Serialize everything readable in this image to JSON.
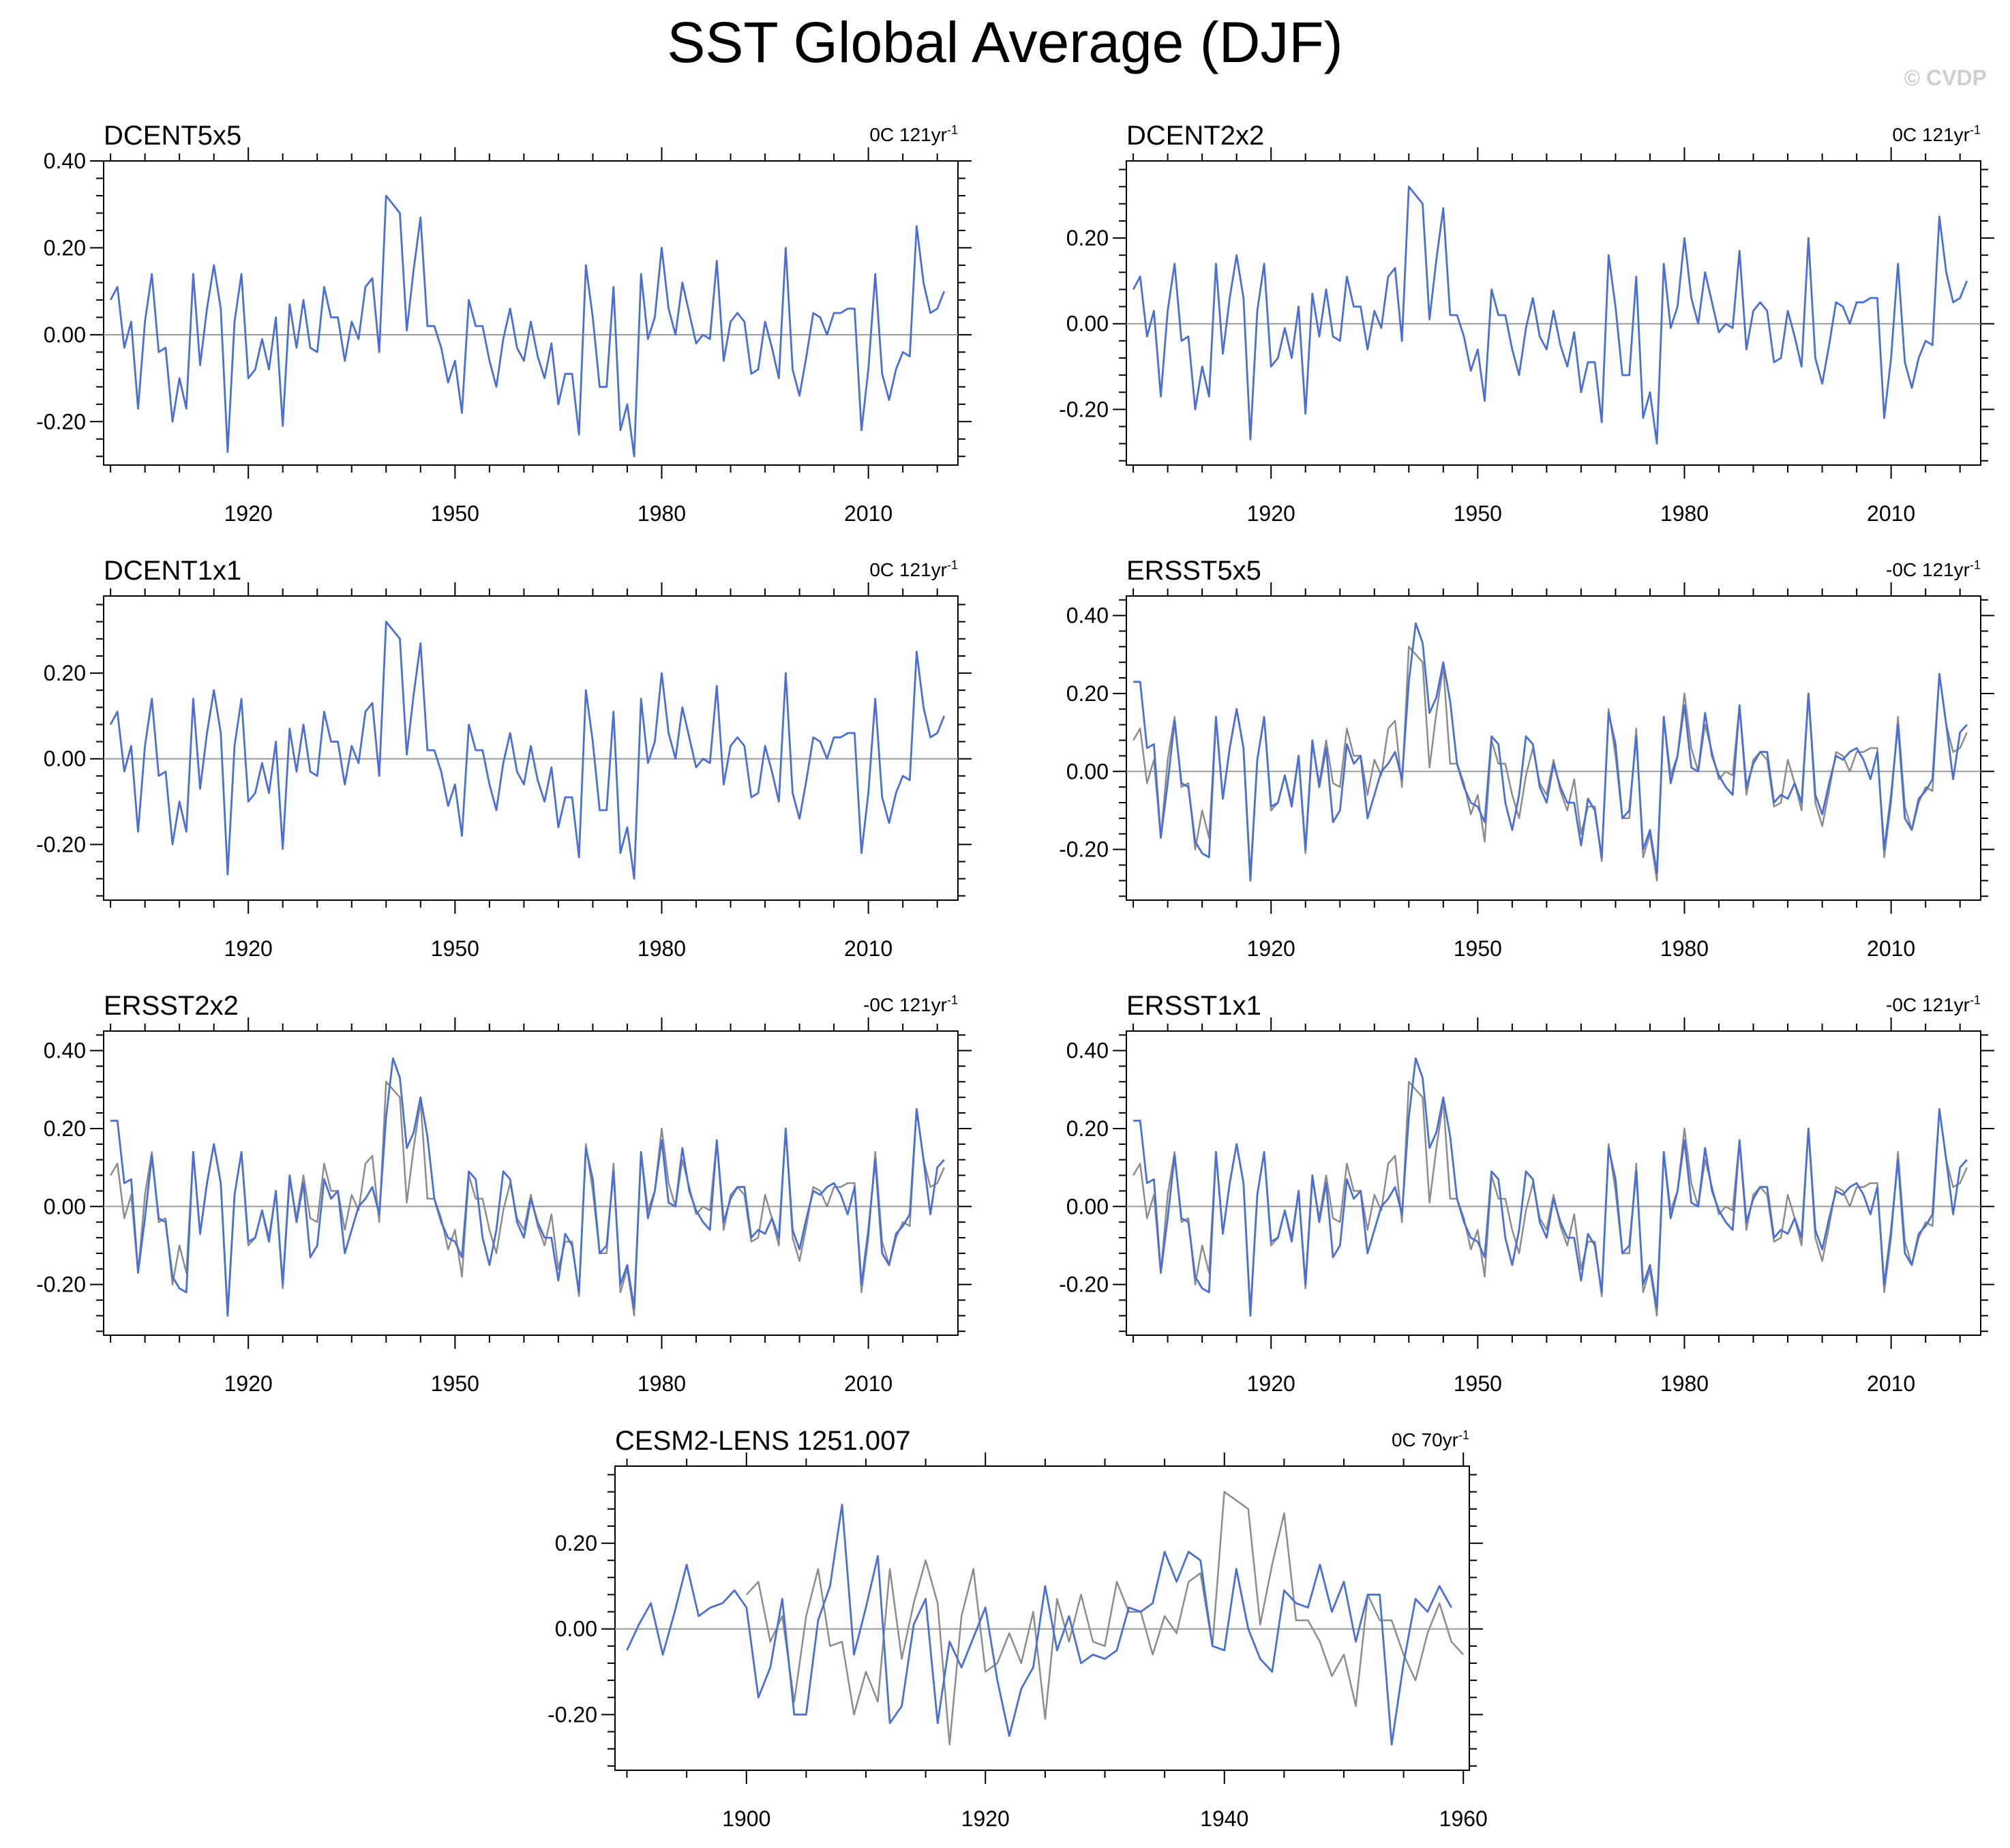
{
  "title": "SST Global Average (DJF)",
  "credit": "© CVDP",
  "colors": {
    "series": "#4a6fd6",
    "reference": "#8c8c8c",
    "zero_line": "#9a9a9a",
    "axis": "#000000"
  },
  "chart_data": [
    {
      "type": "line",
      "name": "DCENT5x5",
      "trend_value": "0C",
      "trend_span": "121yr",
      "trend_exp": "-1",
      "x_start": 1900,
      "xlim": [
        1899,
        2023
      ],
      "xticks": [
        1920,
        1950,
        1980,
        2010
      ],
      "ylim": [
        -0.3,
        0.4
      ],
      "yticks": [
        -0.2,
        0.0,
        0.2,
        0.4
      ],
      "ytick_labels": [
        "-0.20",
        "0.00",
        "0.20",
        "0.40"
      ],
      "reference": null,
      "series": [
        0.08,
        0.11,
        -0.03,
        0.03,
        -0.17,
        0.03,
        0.14,
        -0.04,
        -0.03,
        -0.2,
        -0.1,
        -0.17,
        0.14,
        -0.07,
        0.06,
        0.16,
        0.06,
        -0.27,
        0.03,
        0.14,
        -0.1,
        -0.08,
        -0.01,
        -0.08,
        0.04,
        -0.21,
        0.07,
        -0.03,
        0.08,
        -0.03,
        -0.04,
        0.11,
        0.04,
        0.04,
        -0.06,
        0.03,
        -0.01,
        0.11,
        0.13,
        -0.04,
        0.32,
        0.3,
        0.28,
        0.01,
        0.15,
        0.27,
        0.02,
        0.02,
        -0.03,
        -0.11,
        -0.06,
        -0.18,
        0.08,
        0.02,
        0.02,
        -0.06,
        -0.12,
        -0.01,
        0.06,
        -0.03,
        -0.06,
        0.03,
        -0.05,
        -0.1,
        -0.02,
        -0.16,
        -0.09,
        -0.09,
        -0.23,
        0.16,
        0.04,
        -0.12,
        -0.12,
        0.11,
        -0.22,
        -0.16,
        -0.28,
        0.14,
        -0.01,
        0.04,
        0.2,
        0.06,
        -0.0,
        0.12,
        0.05,
        -0.02,
        -0.0,
        -0.01,
        0.17,
        -0.06,
        0.03,
        0.05,
        0.03,
        -0.09,
        -0.08,
        0.03,
        -0.03,
        -0.1,
        0.2,
        -0.08,
        -0.14,
        -0.05,
        0.05,
        0.04,
        0.0,
        0.05,
        0.05,
        0.06,
        0.06,
        -0.22,
        -0.08,
        0.14,
        -0.09,
        -0.15,
        -0.08,
        -0.04,
        -0.05,
        0.25,
        0.12,
        0.05,
        0.06,
        0.1
      ]
    },
    {
      "type": "line",
      "name": "DCENT2x2",
      "trend_value": "0C",
      "trend_span": "121yr",
      "trend_exp": "-1",
      "x_start": 1900,
      "xlim": [
        1899,
        2023
      ],
      "xticks": [
        1920,
        1950,
        1980,
        2010
      ],
      "ylim": [
        -0.33,
        0.38
      ],
      "yticks": [
        -0.2,
        0.0,
        0.2
      ],
      "ytick_labels": [
        "-0.20",
        "0.00",
        "0.20"
      ],
      "reference": null,
      "series": [
        0.08,
        0.11,
        -0.03,
        0.03,
        -0.17,
        0.03,
        0.14,
        -0.04,
        -0.03,
        -0.2,
        -0.1,
        -0.17,
        0.14,
        -0.07,
        0.06,
        0.16,
        0.06,
        -0.27,
        0.03,
        0.14,
        -0.1,
        -0.08,
        -0.01,
        -0.08,
        0.04,
        -0.21,
        0.07,
        -0.03,
        0.08,
        -0.03,
        -0.04,
        0.11,
        0.04,
        0.04,
        -0.06,
        0.03,
        -0.01,
        0.11,
        0.13,
        -0.04,
        0.32,
        0.3,
        0.28,
        0.01,
        0.15,
        0.27,
        0.02,
        0.02,
        -0.03,
        -0.11,
        -0.06,
        -0.18,
        0.08,
        0.02,
        0.02,
        -0.06,
        -0.12,
        -0.01,
        0.06,
        -0.03,
        -0.06,
        0.03,
        -0.05,
        -0.1,
        -0.02,
        -0.16,
        -0.09,
        -0.09,
        -0.23,
        0.16,
        0.04,
        -0.12,
        -0.12,
        0.11,
        -0.22,
        -0.16,
        -0.28,
        0.14,
        -0.01,
        0.04,
        0.2,
        0.06,
        -0.0,
        0.12,
        0.05,
        -0.02,
        -0.0,
        -0.01,
        0.17,
        -0.06,
        0.03,
        0.05,
        0.03,
        -0.09,
        -0.08,
        0.03,
        -0.03,
        -0.1,
        0.2,
        -0.08,
        -0.14,
        -0.05,
        0.05,
        0.04,
        0.0,
        0.05,
        0.05,
        0.06,
        0.06,
        -0.22,
        -0.08,
        0.14,
        -0.09,
        -0.15,
        -0.08,
        -0.04,
        -0.05,
        0.25,
        0.12,
        0.05,
        0.06,
        0.1
      ]
    },
    {
      "type": "line",
      "name": "DCENT1x1",
      "trend_value": "0C",
      "trend_span": "121yr",
      "trend_exp": "-1",
      "x_start": 1900,
      "xlim": [
        1899,
        2023
      ],
      "xticks": [
        1920,
        1950,
        1980,
        2010
      ],
      "ylim": [
        -0.33,
        0.38
      ],
      "yticks": [
        -0.2,
        0.0,
        0.2
      ],
      "ytick_labels": [
        "-0.20",
        "0.00",
        "0.20"
      ],
      "reference": null,
      "series": [
        0.08,
        0.11,
        -0.03,
        0.03,
        -0.17,
        0.03,
        0.14,
        -0.04,
        -0.03,
        -0.2,
        -0.1,
        -0.17,
        0.14,
        -0.07,
        0.06,
        0.16,
        0.06,
        -0.27,
        0.03,
        0.14,
        -0.1,
        -0.08,
        -0.01,
        -0.08,
        0.04,
        -0.21,
        0.07,
        -0.03,
        0.08,
        -0.03,
        -0.04,
        0.11,
        0.04,
        0.04,
        -0.06,
        0.03,
        -0.01,
        0.11,
        0.13,
        -0.04,
        0.32,
        0.3,
        0.28,
        0.01,
        0.15,
        0.27,
        0.02,
        0.02,
        -0.03,
        -0.11,
        -0.06,
        -0.18,
        0.08,
        0.02,
        0.02,
        -0.06,
        -0.12,
        -0.01,
        0.06,
        -0.03,
        -0.06,
        0.03,
        -0.05,
        -0.1,
        -0.02,
        -0.16,
        -0.09,
        -0.09,
        -0.23,
        0.16,
        0.04,
        -0.12,
        -0.12,
        0.11,
        -0.22,
        -0.16,
        -0.28,
        0.14,
        -0.01,
        0.04,
        0.2,
        0.06,
        -0.0,
        0.12,
        0.05,
        -0.02,
        -0.0,
        -0.01,
        0.17,
        -0.06,
        0.03,
        0.05,
        0.03,
        -0.09,
        -0.08,
        0.03,
        -0.03,
        -0.1,
        0.2,
        -0.08,
        -0.14,
        -0.05,
        0.05,
        0.04,
        0.0,
        0.05,
        0.05,
        0.06,
        0.06,
        -0.22,
        -0.08,
        0.14,
        -0.09,
        -0.15,
        -0.08,
        -0.04,
        -0.05,
        0.25,
        0.12,
        0.05,
        0.06,
        0.1
      ]
    },
    {
      "type": "line",
      "name": "ERSST5x5",
      "trend_value": "-0C",
      "trend_span": "121yr",
      "trend_exp": "-1",
      "x_start": 1900,
      "xlim": [
        1899,
        2023
      ],
      "xticks": [
        1920,
        1950,
        1980,
        2010
      ],
      "ylim": [
        -0.33,
        0.45
      ],
      "yticks": [
        -0.2,
        0.0,
        0.2,
        0.4
      ],
      "ytick_labels": [
        "-0.20",
        "0.00",
        "0.20",
        "0.40"
      ],
      "reference": "DCENT5x5",
      "series": [
        0.23,
        0.23,
        0.06,
        0.07,
        -0.17,
        -0.03,
        0.13,
        -0.03,
        -0.04,
        -0.18,
        -0.21,
        -0.22,
        0.14,
        -0.07,
        0.06,
        0.16,
        0.06,
        -0.28,
        0.03,
        0.14,
        -0.09,
        -0.08,
        -0.01,
        -0.09,
        0.04,
        -0.2,
        0.08,
        -0.04,
        0.06,
        -0.13,
        -0.1,
        0.07,
        0.02,
        0.04,
        -0.12,
        -0.06,
        0.0,
        0.02,
        0.05,
        -0.02,
        0.23,
        0.38,
        0.33,
        0.15,
        0.19,
        0.28,
        0.18,
        0.02,
        -0.04,
        -0.08,
        -0.09,
        -0.13,
        0.09,
        0.07,
        -0.08,
        -0.15,
        -0.06,
        0.09,
        0.07,
        -0.04,
        -0.08,
        0.02,
        -0.04,
        -0.08,
        -0.08,
        -0.19,
        -0.07,
        -0.1,
        -0.22,
        0.15,
        0.07,
        -0.12,
        -0.1,
        0.09,
        -0.2,
        -0.15,
        -0.26,
        0.14,
        -0.03,
        0.04,
        0.17,
        0.01,
        0.0,
        0.15,
        0.04,
        -0.01,
        -0.04,
        -0.06,
        0.17,
        -0.04,
        0.02,
        0.05,
        0.05,
        -0.08,
        -0.06,
        -0.07,
        -0.03,
        -0.08,
        0.2,
        -0.06,
        -0.11,
        -0.03,
        0.04,
        0.03,
        0.05,
        0.06,
        0.03,
        -0.02,
        0.05,
        -0.2,
        -0.06,
        0.12,
        -0.12,
        -0.15,
        -0.07,
        -0.05,
        -0.02,
        0.25,
        0.12,
        -0.02,
        0.1,
        0.12
      ]
    },
    {
      "type": "line",
      "name": "ERSST2x2",
      "trend_value": "-0C",
      "trend_span": "121yr",
      "trend_exp": "-1",
      "x_start": 1900,
      "xlim": [
        1899,
        2023
      ],
      "xticks": [
        1920,
        1950,
        1980,
        2010
      ],
      "ylim": [
        -0.33,
        0.45
      ],
      "yticks": [
        -0.2,
        0.0,
        0.2,
        0.4
      ],
      "ytick_labels": [
        "-0.20",
        "0.00",
        "0.20",
        "0.40"
      ],
      "reference": "DCENT2x2",
      "series": [
        0.22,
        0.22,
        0.06,
        0.07,
        -0.17,
        -0.03,
        0.13,
        -0.03,
        -0.04,
        -0.18,
        -0.21,
        -0.22,
        0.14,
        -0.07,
        0.06,
        0.16,
        0.06,
        -0.28,
        0.03,
        0.14,
        -0.09,
        -0.08,
        -0.01,
        -0.09,
        0.04,
        -0.2,
        0.08,
        -0.04,
        0.06,
        -0.13,
        -0.1,
        0.07,
        0.02,
        0.04,
        -0.12,
        -0.06,
        0.0,
        0.02,
        0.05,
        -0.02,
        0.23,
        0.38,
        0.33,
        0.15,
        0.19,
        0.28,
        0.18,
        0.02,
        -0.04,
        -0.08,
        -0.09,
        -0.13,
        0.09,
        0.07,
        -0.08,
        -0.15,
        -0.06,
        0.09,
        0.07,
        -0.04,
        -0.08,
        0.02,
        -0.04,
        -0.08,
        -0.08,
        -0.19,
        -0.07,
        -0.1,
        -0.22,
        0.15,
        0.07,
        -0.12,
        -0.1,
        0.09,
        -0.2,
        -0.15,
        -0.26,
        0.14,
        -0.03,
        0.04,
        0.17,
        0.01,
        0.0,
        0.15,
        0.04,
        -0.01,
        -0.04,
        -0.06,
        0.17,
        -0.04,
        0.02,
        0.05,
        0.05,
        -0.08,
        -0.06,
        -0.07,
        -0.03,
        -0.08,
        0.2,
        -0.06,
        -0.11,
        -0.03,
        0.04,
        0.03,
        0.05,
        0.06,
        0.03,
        -0.02,
        0.05,
        -0.2,
        -0.06,
        0.12,
        -0.12,
        -0.15,
        -0.07,
        -0.05,
        -0.02,
        0.25,
        0.12,
        -0.02,
        0.1,
        0.12
      ]
    },
    {
      "type": "line",
      "name": "ERSST1x1",
      "trend_value": "-0C",
      "trend_span": "121yr",
      "trend_exp": "-1",
      "x_start": 1900,
      "xlim": [
        1899,
        2023
      ],
      "xticks": [
        1920,
        1950,
        1980,
        2010
      ],
      "ylim": [
        -0.33,
        0.45
      ],
      "yticks": [
        -0.2,
        0.0,
        0.2,
        0.4
      ],
      "ytick_labels": [
        "-0.20",
        "0.00",
        "0.20",
        "0.40"
      ],
      "reference": "DCENT1x1",
      "series": [
        0.22,
        0.22,
        0.06,
        0.07,
        -0.17,
        -0.03,
        0.13,
        -0.03,
        -0.04,
        -0.18,
        -0.21,
        -0.22,
        0.14,
        -0.07,
        0.06,
        0.16,
        0.06,
        -0.28,
        0.03,
        0.14,
        -0.09,
        -0.08,
        -0.01,
        -0.09,
        0.04,
        -0.2,
        0.08,
        -0.04,
        0.06,
        -0.13,
        -0.1,
        0.07,
        0.02,
        0.04,
        -0.12,
        -0.06,
        0.0,
        0.02,
        0.05,
        -0.02,
        0.23,
        0.38,
        0.33,
        0.15,
        0.19,
        0.28,
        0.18,
        0.02,
        -0.04,
        -0.08,
        -0.09,
        -0.13,
        0.09,
        0.07,
        -0.08,
        -0.15,
        -0.06,
        0.09,
        0.07,
        -0.04,
        -0.08,
        0.02,
        -0.04,
        -0.08,
        -0.08,
        -0.19,
        -0.07,
        -0.1,
        -0.22,
        0.15,
        0.07,
        -0.12,
        -0.1,
        0.09,
        -0.2,
        -0.15,
        -0.26,
        0.14,
        -0.03,
        0.04,
        0.17,
        0.01,
        0.0,
        0.15,
        0.04,
        -0.01,
        -0.04,
        -0.06,
        0.17,
        -0.04,
        0.02,
        0.05,
        0.05,
        -0.08,
        -0.06,
        -0.07,
        -0.03,
        -0.08,
        0.2,
        -0.06,
        -0.11,
        -0.03,
        0.04,
        0.03,
        0.05,
        0.06,
        0.03,
        -0.02,
        0.05,
        -0.2,
        -0.06,
        0.12,
        -0.12,
        -0.15,
        -0.07,
        -0.05,
        -0.02,
        0.25,
        0.12,
        -0.02,
        0.1,
        0.12
      ]
    },
    {
      "type": "line",
      "name": "CESM2-LENS 1251.007",
      "trend_value": "0C",
      "trend_span": "70yr",
      "trend_exp": "-1",
      "x_start": 1890,
      "xlim": [
        1889,
        1960.5
      ],
      "xticks": [
        1900,
        1920,
        1940,
        1960
      ],
      "ylim": [
        -0.33,
        0.38
      ],
      "yticks": [
        -0.2,
        0.0,
        0.2
      ],
      "ytick_labels": [
        "-0.20",
        "0.00",
        "0.20"
      ],
      "reference": "DCENT5x5",
      "series": [
        -0.05,
        0.01,
        0.06,
        -0.06,
        0.04,
        0.15,
        0.03,
        0.05,
        0.06,
        0.09,
        0.05,
        -0.16,
        -0.09,
        0.07,
        -0.2,
        -0.2,
        0.02,
        0.1,
        0.29,
        -0.06,
        0.05,
        0.17,
        -0.22,
        -0.18,
        0.01,
        0.07,
        -0.22,
        -0.03,
        -0.09,
        -0.02,
        0.05,
        -0.12,
        -0.25,
        -0.14,
        -0.09,
        0.1,
        -0.05,
        0.03,
        -0.08,
        -0.06,
        -0.07,
        -0.05,
        0.05,
        0.04,
        0.06,
        0.18,
        0.11,
        0.18,
        0.16,
        -0.04,
        -0.05,
        0.14,
        0.0,
        -0.07,
        -0.1,
        0.09,
        0.06,
        0.05,
        0.15,
        0.04,
        0.11,
        -0.03,
        0.08,
        0.08,
        -0.27,
        -0.08,
        0.07,
        0.04,
        0.1,
        0.05
      ]
    }
  ]
}
